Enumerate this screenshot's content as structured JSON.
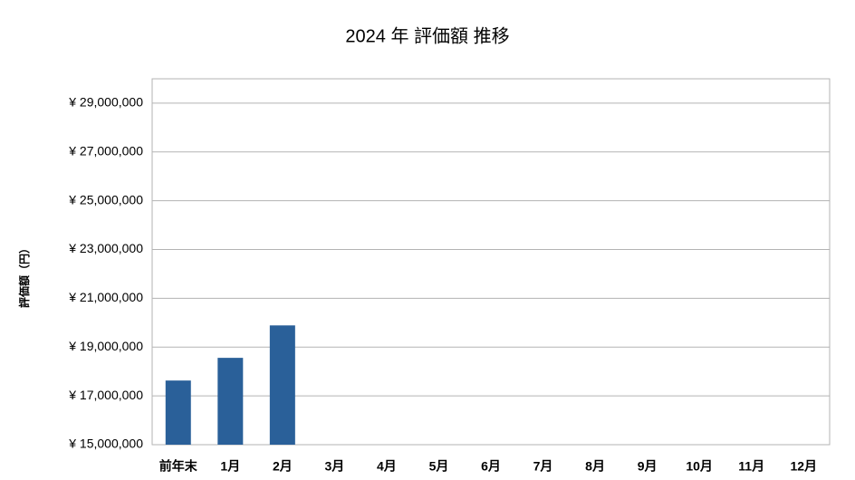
{
  "chart_data": {
    "type": "bar",
    "title": "2024 年 評価額 推移",
    "y_label": "評価額（円）",
    "categories": [
      "前年末",
      "1月",
      "2月",
      "3月",
      "4月",
      "5月",
      "6月",
      "7月",
      "8月",
      "9月",
      "10月",
      "11月",
      "12月"
    ],
    "values": [
      17630000,
      18560000,
      19890000,
      null,
      null,
      null,
      null,
      null,
      null,
      null,
      null,
      null,
      null
    ],
    "color": "#2a6099",
    "ylim": [
      15000000,
      30000000
    ],
    "yticks": [
      {
        "value": 15000000,
        "label": "¥ 15,000,000"
      },
      {
        "value": 17000000,
        "label": "¥ 17,000,000"
      },
      {
        "value": 19000000,
        "label": "¥ 19,000,000"
      },
      {
        "value": 21000000,
        "label": "¥ 21,000,000"
      },
      {
        "value": 23000000,
        "label": "¥ 23,000,000"
      },
      {
        "value": 25000000,
        "label": "¥ 25,000,000"
      },
      {
        "value": 27000000,
        "label": "¥ 27,000,000"
      },
      {
        "value": 29000000,
        "label": "¥ 29,000,000"
      }
    ],
    "grid": true
  }
}
